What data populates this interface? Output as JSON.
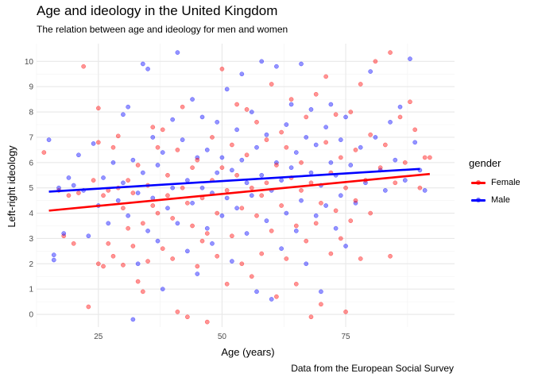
{
  "chart_data": {
    "type": "scatter",
    "title": "Age and ideology in the United Kingdom",
    "subtitle": "The relation between age and ideology for men and women",
    "caption": "Data from the European Social Survey",
    "xlabel": "Age (years)",
    "ylabel": "Left-right ideology",
    "x_ticks": [
      25,
      50,
      75
    ],
    "y_ticks": [
      0,
      1,
      2,
      3,
      4,
      5,
      6,
      7,
      8,
      9,
      10
    ],
    "xlim": [
      12.5,
      97
    ],
    "ylim": [
      -0.5,
      10.7
    ],
    "grid": true,
    "legend": {
      "title": "gender",
      "position": "right"
    },
    "series": [
      {
        "name": "Female",
        "color": "#ff0000",
        "trend": {
          "x": [
            15,
            92
          ],
          "y": [
            4.1,
            5.55
          ]
        },
        "points": [
          [
            14,
            6.4
          ],
          [
            17,
            4.9
          ],
          [
            18,
            3.1
          ],
          [
            19,
            4.7
          ],
          [
            20,
            2.8
          ],
          [
            21,
            4.8
          ],
          [
            22,
            9.8
          ],
          [
            23,
            0.3
          ],
          [
            24,
            5.3
          ],
          [
            25,
            2.0
          ],
          [
            25,
            8.15
          ],
          [
            25,
            6.8
          ],
          [
            26,
            4.7
          ],
          [
            26,
            1.9
          ],
          [
            27,
            2.8
          ],
          [
            27,
            4.9
          ],
          [
            28,
            2.3
          ],
          [
            28,
            6.6
          ],
          [
            29,
            5.0
          ],
          [
            29,
            7.05
          ],
          [
            30,
            1.95
          ],
          [
            30,
            4.2
          ],
          [
            31,
            5.3
          ],
          [
            31,
            3.4
          ],
          [
            32,
            2.7
          ],
          [
            32,
            4.8
          ],
          [
            33,
            1.3
          ],
          [
            33,
            5.9
          ],
          [
            34,
            3.6
          ],
          [
            34,
            0.9
          ],
          [
            35,
            5.1
          ],
          [
            35,
            2.1
          ],
          [
            36,
            7.4
          ],
          [
            36,
            4.3
          ],
          [
            37,
            4.0
          ],
          [
            37,
            6.6
          ],
          [
            38,
            7.3
          ],
          [
            38,
            2.6
          ],
          [
            39,
            4.7
          ],
          [
            39,
            5.5
          ],
          [
            40,
            3.8
          ],
          [
            40,
            2.2
          ],
          [
            41,
            0.1
          ],
          [
            41,
            6.5
          ],
          [
            42,
            8.2
          ],
          [
            42,
            5.0
          ],
          [
            43,
            -0.1
          ],
          [
            43,
            4.4
          ],
          [
            44,
            5.8
          ],
          [
            44,
            3.5
          ],
          [
            45,
            1.9
          ],
          [
            45,
            6.1
          ],
          [
            46,
            2.9
          ],
          [
            46,
            4.6
          ],
          [
            47,
            3.2
          ],
          [
            47,
            -0.3
          ],
          [
            48,
            7.0
          ],
          [
            48,
            5.3
          ],
          [
            49,
            2.3
          ],
          [
            49,
            4.0
          ],
          [
            50,
            5.8
          ],
          [
            50,
            9.7
          ],
          [
            51,
            4.9
          ],
          [
            51,
            1.2
          ],
          [
            52,
            6.7
          ],
          [
            52,
            3.1
          ],
          [
            53,
            8.3
          ],
          [
            53,
            5.5
          ],
          [
            54,
            2.0
          ],
          [
            54,
            4.2
          ],
          [
            55,
            6.3
          ],
          [
            55,
            8.1
          ],
          [
            56,
            1.5
          ],
          [
            56,
            5.0
          ],
          [
            57,
            3.9
          ],
          [
            57,
            7.6
          ],
          [
            58,
            4.7
          ],
          [
            58,
            2.4
          ],
          [
            59,
            6.9
          ],
          [
            59,
            5.2
          ],
          [
            60,
            9.1
          ],
          [
            60,
            3.3
          ],
          [
            61,
            0.7
          ],
          [
            61,
            5.9
          ],
          [
            62,
            7.2
          ],
          [
            62,
            4.3
          ],
          [
            63,
            2.2
          ],
          [
            63,
            6.6
          ],
          [
            64,
            5.4
          ],
          [
            64,
            8.5
          ],
          [
            65,
            3.5
          ],
          [
            65,
            1.2
          ],
          [
            66,
            6.0
          ],
          [
            66,
            4.9
          ],
          [
            67,
            7.8
          ],
          [
            67,
            2.9
          ],
          [
            68,
            5.2
          ],
          [
            68,
            -0.1
          ],
          [
            69,
            3.6
          ],
          [
            69,
            8.7
          ],
          [
            70,
            4.4
          ],
          [
            70,
            0.4
          ],
          [
            71,
            6.8
          ],
          [
            71,
            9.4
          ],
          [
            72,
            2.4
          ],
          [
            72,
            5.6
          ],
          [
            73,
            7.9
          ],
          [
            73,
            4.1
          ],
          [
            74,
            3.0
          ],
          [
            74,
            6.2
          ],
          [
            75,
            0.1
          ],
          [
            75,
            5.0
          ],
          [
            76,
            8.0
          ],
          [
            76,
            3.7
          ],
          [
            77,
            6.5
          ],
          [
            77,
            4.5
          ],
          [
            78,
            2.2
          ],
          [
            78,
            9.1
          ],
          [
            79,
            5.3
          ],
          [
            80,
            7.1
          ],
          [
            80,
            4.0
          ],
          [
            81,
            10.0
          ],
          [
            82,
            5.8
          ],
          [
            83,
            6.7
          ],
          [
            84,
            2.3
          ],
          [
            84,
            10.35
          ],
          [
            85,
            5.2
          ],
          [
            86,
            7.8
          ],
          [
            87,
            6.0
          ],
          [
            88,
            8.4
          ],
          [
            89,
            7.3
          ],
          [
            90,
            5.0
          ],
          [
            91,
            6.2
          ],
          [
            92,
            6.2
          ]
        ]
      },
      {
        "name": "Male",
        "color": "#0000ff",
        "trend": {
          "x": [
            15,
            90
          ],
          "y": [
            4.85,
            5.75
          ]
        },
        "points": [
          [
            15,
            6.9
          ],
          [
            16,
            2.35
          ],
          [
            16,
            2.15
          ],
          [
            17,
            5.0
          ],
          [
            18,
            3.2
          ],
          [
            19,
            5.4
          ],
          [
            20,
            5.1
          ],
          [
            21,
            6.3
          ],
          [
            22,
            4.9
          ],
          [
            23,
            3.1
          ],
          [
            24,
            6.75
          ],
          [
            25,
            4.3
          ],
          [
            26,
            5.4
          ],
          [
            27,
            3.6
          ],
          [
            28,
            6.0
          ],
          [
            29,
            4.5
          ],
          [
            30,
            7.9
          ],
          [
            30,
            5.2
          ],
          [
            31,
            8.2
          ],
          [
            31,
            3.9
          ],
          [
            32,
            -0.2
          ],
          [
            32,
            6.1
          ],
          [
            33,
            4.8
          ],
          [
            33,
            2.0
          ],
          [
            34,
            9.9
          ],
          [
            34,
            5.6
          ],
          [
            35,
            9.7
          ],
          [
            35,
            3.3
          ],
          [
            36,
            7.0
          ],
          [
            36,
            4.6
          ],
          [
            37,
            5.9
          ],
          [
            37,
            2.9
          ],
          [
            38,
            1.0
          ],
          [
            38,
            6.4
          ],
          [
            39,
            4.2
          ],
          [
            40,
            7.7
          ],
          [
            40,
            5.0
          ],
          [
            41,
            10.35
          ],
          [
            41,
            3.6
          ],
          [
            42,
            6.9
          ],
          [
            43,
            5.3
          ],
          [
            43,
            2.5
          ],
          [
            44,
            8.5
          ],
          [
            44,
            4.4
          ],
          [
            45,
            6.2
          ],
          [
            45,
            1.6
          ],
          [
            46,
            7.8
          ],
          [
            46,
            5.0
          ],
          [
            47,
            3.4
          ],
          [
            47,
            6.5
          ],
          [
            48,
            4.8
          ],
          [
            48,
            2.8
          ],
          [
            49,
            7.6
          ],
          [
            49,
            5.6
          ],
          [
            50,
            6.2
          ],
          [
            50,
            3.9
          ],
          [
            51,
            8.9
          ],
          [
            51,
            4.6
          ],
          [
            52,
            5.7
          ],
          [
            52,
            2.1
          ],
          [
            53,
            7.3
          ],
          [
            53,
            4.2
          ],
          [
            54,
            9.5
          ],
          [
            54,
            6.1
          ],
          [
            55,
            3.2
          ],
          [
            55,
            5.2
          ],
          [
            56,
            8.0
          ],
          [
            56,
            4.7
          ],
          [
            57,
            0.9
          ],
          [
            57,
            6.6
          ],
          [
            58,
            10.0
          ],
          [
            58,
            5.5
          ],
          [
            59,
            3.7
          ],
          [
            59,
            7.1
          ],
          [
            60,
            0.6
          ],
          [
            60,
            4.9
          ],
          [
            61,
            9.8
          ],
          [
            61,
            6.0
          ],
          [
            62,
            2.6
          ],
          [
            62,
            5.3
          ],
          [
            63,
            7.5
          ],
          [
            63,
            4.0
          ],
          [
            64,
            8.3
          ],
          [
            64,
            5.8
          ],
          [
            65,
            3.3
          ],
          [
            65,
            6.4
          ],
          [
            66,
            9.9
          ],
          [
            66,
            4.5
          ],
          [
            67,
            7.0
          ],
          [
            67,
            2.0
          ],
          [
            68,
            5.6
          ],
          [
            68,
            8.1
          ],
          [
            69,
            3.9
          ],
          [
            69,
            6.7
          ],
          [
            70,
            0.9
          ],
          [
            70,
            5.1
          ],
          [
            71,
            7.4
          ],
          [
            71,
            4.3
          ],
          [
            72,
            8.3
          ],
          [
            72,
            6.0
          ],
          [
            73,
            3.4
          ],
          [
            73,
            5.5
          ],
          [
            74,
            6.9
          ],
          [
            74,
            4.7
          ],
          [
            75,
            7.8
          ],
          [
            75,
            2.7
          ],
          [
            76,
            5.9
          ],
          [
            77,
            4.4
          ],
          [
            78,
            6.6
          ],
          [
            79,
            5.2
          ],
          [
            80,
            9.6
          ],
          [
            81,
            7.0
          ],
          [
            82,
            5.7
          ],
          [
            83,
            4.9
          ],
          [
            84,
            7.6
          ],
          [
            85,
            6.1
          ],
          [
            86,
            8.2
          ],
          [
            87,
            5.3
          ],
          [
            88,
            10.1
          ],
          [
            89,
            6.8
          ],
          [
            90,
            5.7
          ],
          [
            91,
            4.9
          ]
        ]
      }
    ]
  }
}
